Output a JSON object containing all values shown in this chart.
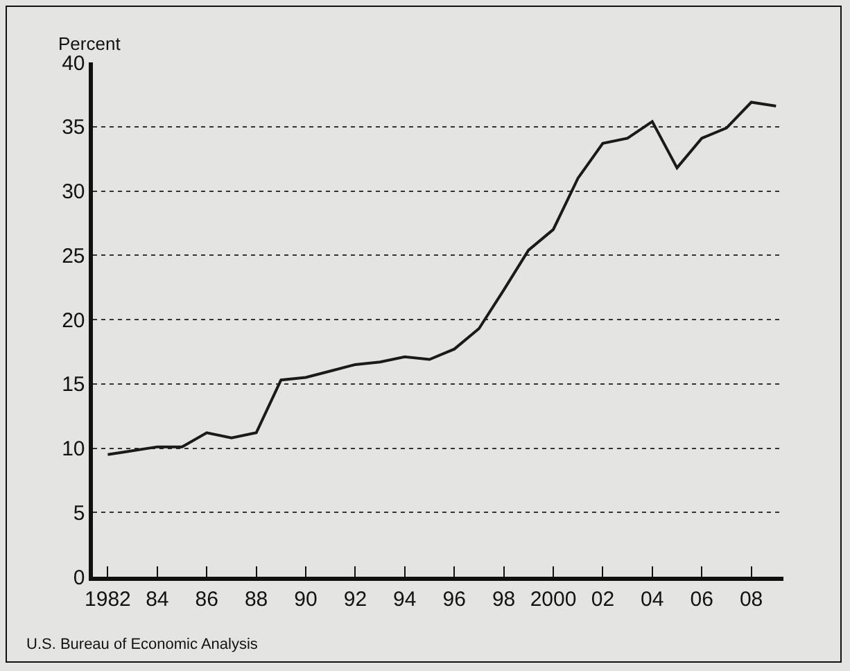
{
  "chart_data": {
    "type": "line",
    "ylabel": "Percent",
    "x": [
      1982,
      1983,
      1984,
      1985,
      1986,
      1987,
      1988,
      1989,
      1990,
      1991,
      1992,
      1993,
      1994,
      1995,
      1996,
      1997,
      1998,
      1999,
      2000,
      2001,
      2002,
      2003,
      2004,
      2005,
      2006,
      2007,
      2008,
      2009
    ],
    "series": [
      {
        "color": "#1a1a1a",
        "values": [
          9.5,
          9.8,
          10.1,
          10.1,
          11.2,
          10.8,
          11.2,
          15.3,
          15.5,
          16.0,
          16.5,
          16.7,
          17.1,
          16.9,
          17.7,
          19.3,
          22.3,
          25.4,
          27.0,
          31.0,
          33.7,
          34.1,
          35.4,
          31.8,
          34.1,
          34.9,
          36.9,
          36.6
        ]
      }
    ],
    "xlim": [
      1981.4,
      2009.3
    ],
    "xticks": [
      {
        "value": 1982,
        "label": "1982"
      },
      {
        "value": 1984,
        "label": "84"
      },
      {
        "value": 1986,
        "label": "86"
      },
      {
        "value": 1988,
        "label": "88"
      },
      {
        "value": 1990,
        "label": "90"
      },
      {
        "value": 1992,
        "label": "92"
      },
      {
        "value": 1994,
        "label": "94"
      },
      {
        "value": 1996,
        "label": "96"
      },
      {
        "value": 1998,
        "label": "98"
      },
      {
        "value": 2000,
        "label": "2000"
      },
      {
        "value": 2002,
        "label": "02"
      },
      {
        "value": 2004,
        "label": "04"
      },
      {
        "value": 2006,
        "label": "06"
      },
      {
        "value": 2008,
        "label": "08"
      }
    ],
    "ylim": [
      0,
      40
    ],
    "yticks": [
      0,
      5,
      10,
      15,
      20,
      25,
      30,
      35,
      40
    ],
    "grid": "y",
    "line_style": "solid",
    "marker": "none",
    "annotations": [
      "U.S. Bureau of Economic Analysis"
    ]
  }
}
